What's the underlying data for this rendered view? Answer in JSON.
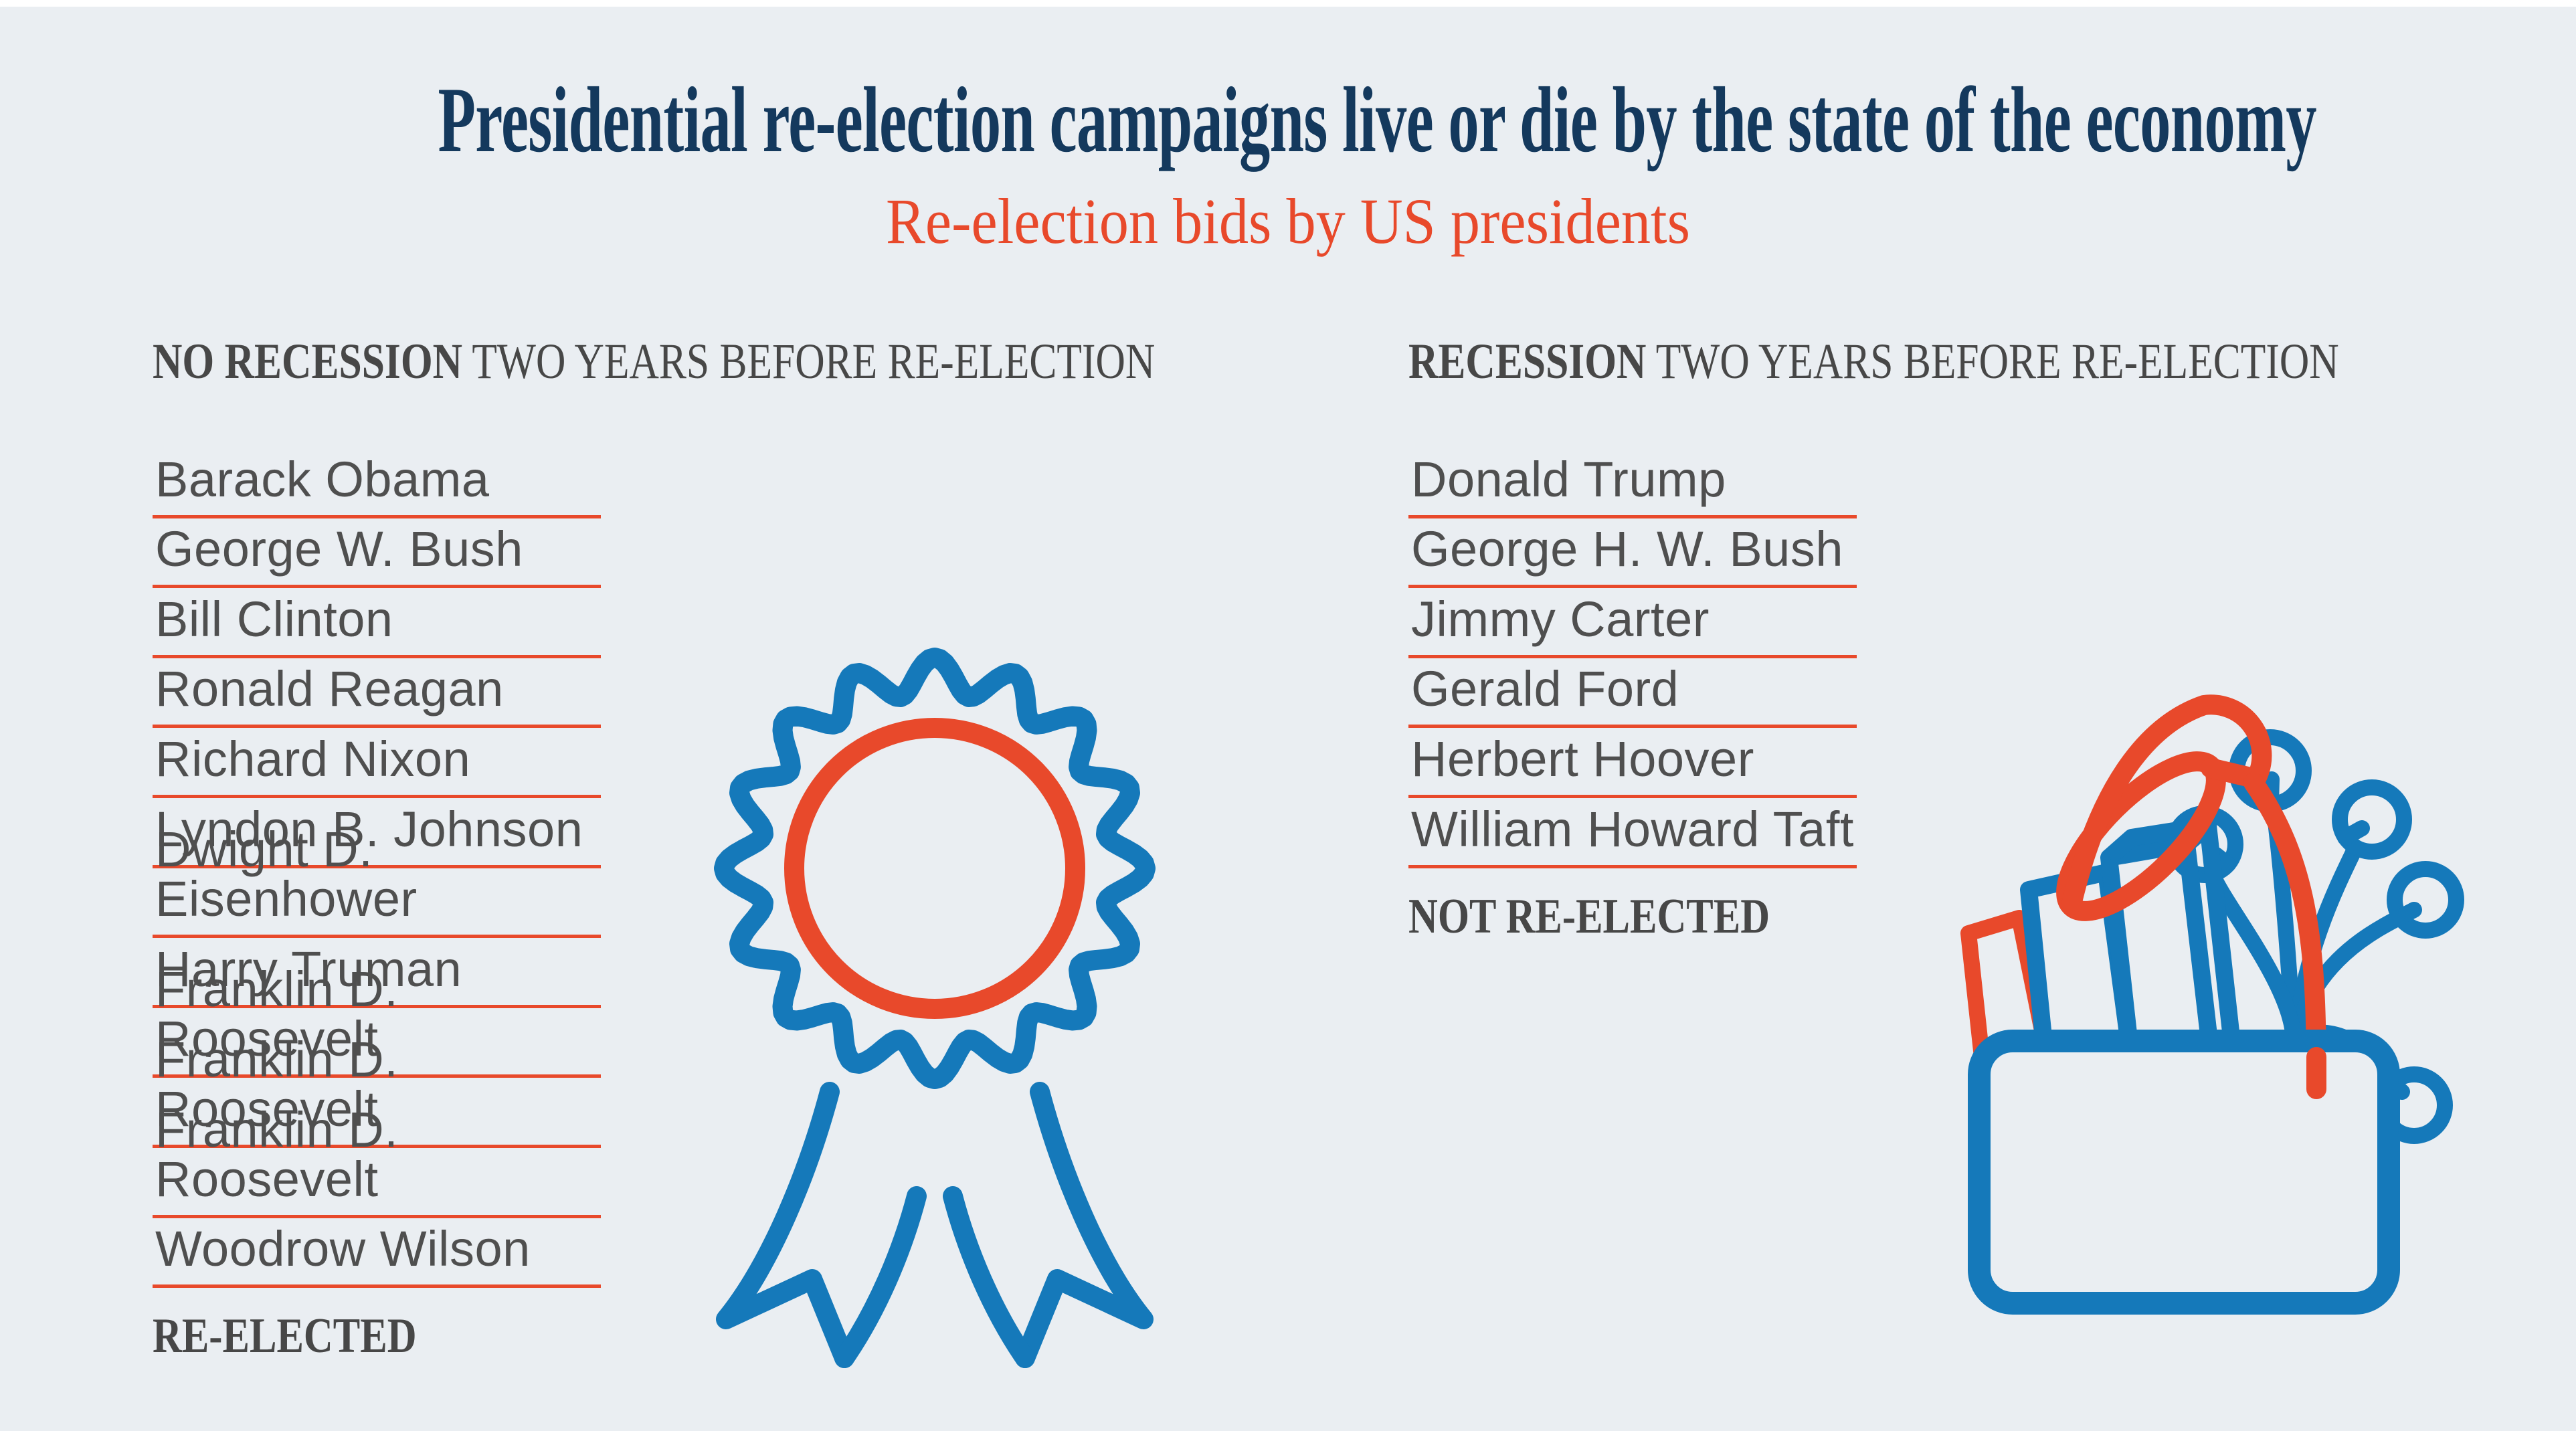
{
  "title": "Presidential re-election campaigns live or die by the state of the economy",
  "subtitle": "Re-election bids by US presidents",
  "colors": {
    "background": "#eaeef2",
    "navy": "#14395d",
    "red": "#e8492b",
    "blue": "#1579ba",
    "text_gray": "#4f4f4f"
  },
  "left": {
    "heading_bold": "NO RECESSION",
    "heading_rest": " TWO YEARS BEFORE RE-ELECTION",
    "names": [
      "Barack Obama",
      "George W. Bush",
      "Bill Clinton",
      "Ronald Reagan",
      "Richard Nixon",
      "Lyndon B. Johnson",
      "Dwight D. Eisenhower",
      "Harry Truman",
      "Franklin D. Roosevelt",
      "Franklin D. Roosevelt",
      "Franklin D. Roosevelt",
      "Woodrow Wilson"
    ],
    "verdict": "RE-ELECTED",
    "icon": "award-rosette-icon"
  },
  "right": {
    "heading_bold": "RECESSION",
    "heading_rest": " TWO YEARS BEFORE RE-ELECTION",
    "names": [
      "Donald Trump",
      "George H. W. Bush",
      "Jimmy Carter",
      "Gerald Ford",
      "Herbert Hoover",
      "William Howard Taft"
    ],
    "verdict": "NOT RE-ELECTED",
    "icon": "packed-office-box-icon"
  },
  "chart_data": {
    "type": "table",
    "title": "Presidential re-election campaigns live or die by the state of the economy",
    "subtitle": "Re-election bids by US presidents",
    "groups": [
      {
        "condition": "NO RECESSION TWO YEARS BEFORE RE-ELECTION",
        "outcome": "RE-ELECTED",
        "count": 12,
        "presidents": [
          "Barack Obama",
          "George W. Bush",
          "Bill Clinton",
          "Ronald Reagan",
          "Richard Nixon",
          "Lyndon B. Johnson",
          "Dwight D. Eisenhower",
          "Harry Truman",
          "Franklin D. Roosevelt",
          "Franklin D. Roosevelt",
          "Franklin D. Roosevelt",
          "Woodrow Wilson"
        ]
      },
      {
        "condition": "RECESSION TWO YEARS BEFORE RE-ELECTION",
        "outcome": "NOT RE-ELECTED",
        "count": 6,
        "presidents": [
          "Donald Trump",
          "George H. W. Bush",
          "Jimmy Carter",
          "Gerald Ford",
          "Herbert Hoover",
          "William Howard Taft"
        ]
      }
    ],
    "legend_position": "none",
    "grid": false
  }
}
